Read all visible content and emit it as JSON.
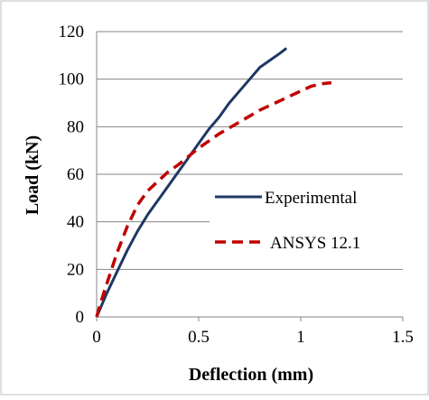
{
  "chart_data": {
    "type": "line",
    "xlabel": "Deflection (mm)",
    "ylabel": "Load (kN)",
    "xlim": [
      0,
      1.5
    ],
    "ylim": [
      0,
      120
    ],
    "x_ticks": [
      "0",
      "0.5",
      "1",
      "1.5"
    ],
    "y_ticks": [
      "0",
      "20",
      "40",
      "60",
      "80",
      "100",
      "120"
    ],
    "grid": "horizontal",
    "legend_position": "right",
    "series": [
      {
        "name": "Experimental",
        "color": "#1f3864",
        "style": "solid",
        "x": [
          0,
          0.02,
          0.05,
          0.1,
          0.15,
          0.2,
          0.25,
          0.3,
          0.35,
          0.4,
          0.45,
          0.5,
          0.55,
          0.6,
          0.65,
          0.7,
          0.75,
          0.8,
          0.85,
          0.9,
          0.93
        ],
        "y": [
          0,
          4,
          10,
          19,
          28,
          36,
          43,
          49,
          55,
          61,
          67,
          73,
          79,
          84,
          90,
          95,
          100,
          105,
          108,
          111,
          113
        ]
      },
      {
        "name": "ANSYS 12.1",
        "color": "#c00000",
        "style": "dashed",
        "x": [
          0,
          0.02,
          0.05,
          0.1,
          0.15,
          0.2,
          0.25,
          0.3,
          0.35,
          0.4,
          0.5,
          0.6,
          0.7,
          0.8,
          0.9,
          1.0,
          1.05,
          1.1,
          1.15
        ],
        "y": [
          0,
          6,
          14,
          27,
          38,
          47,
          53,
          57,
          61,
          64,
          71,
          77,
          82,
          87,
          91,
          95,
          97,
          98,
          98.5
        ]
      }
    ]
  }
}
